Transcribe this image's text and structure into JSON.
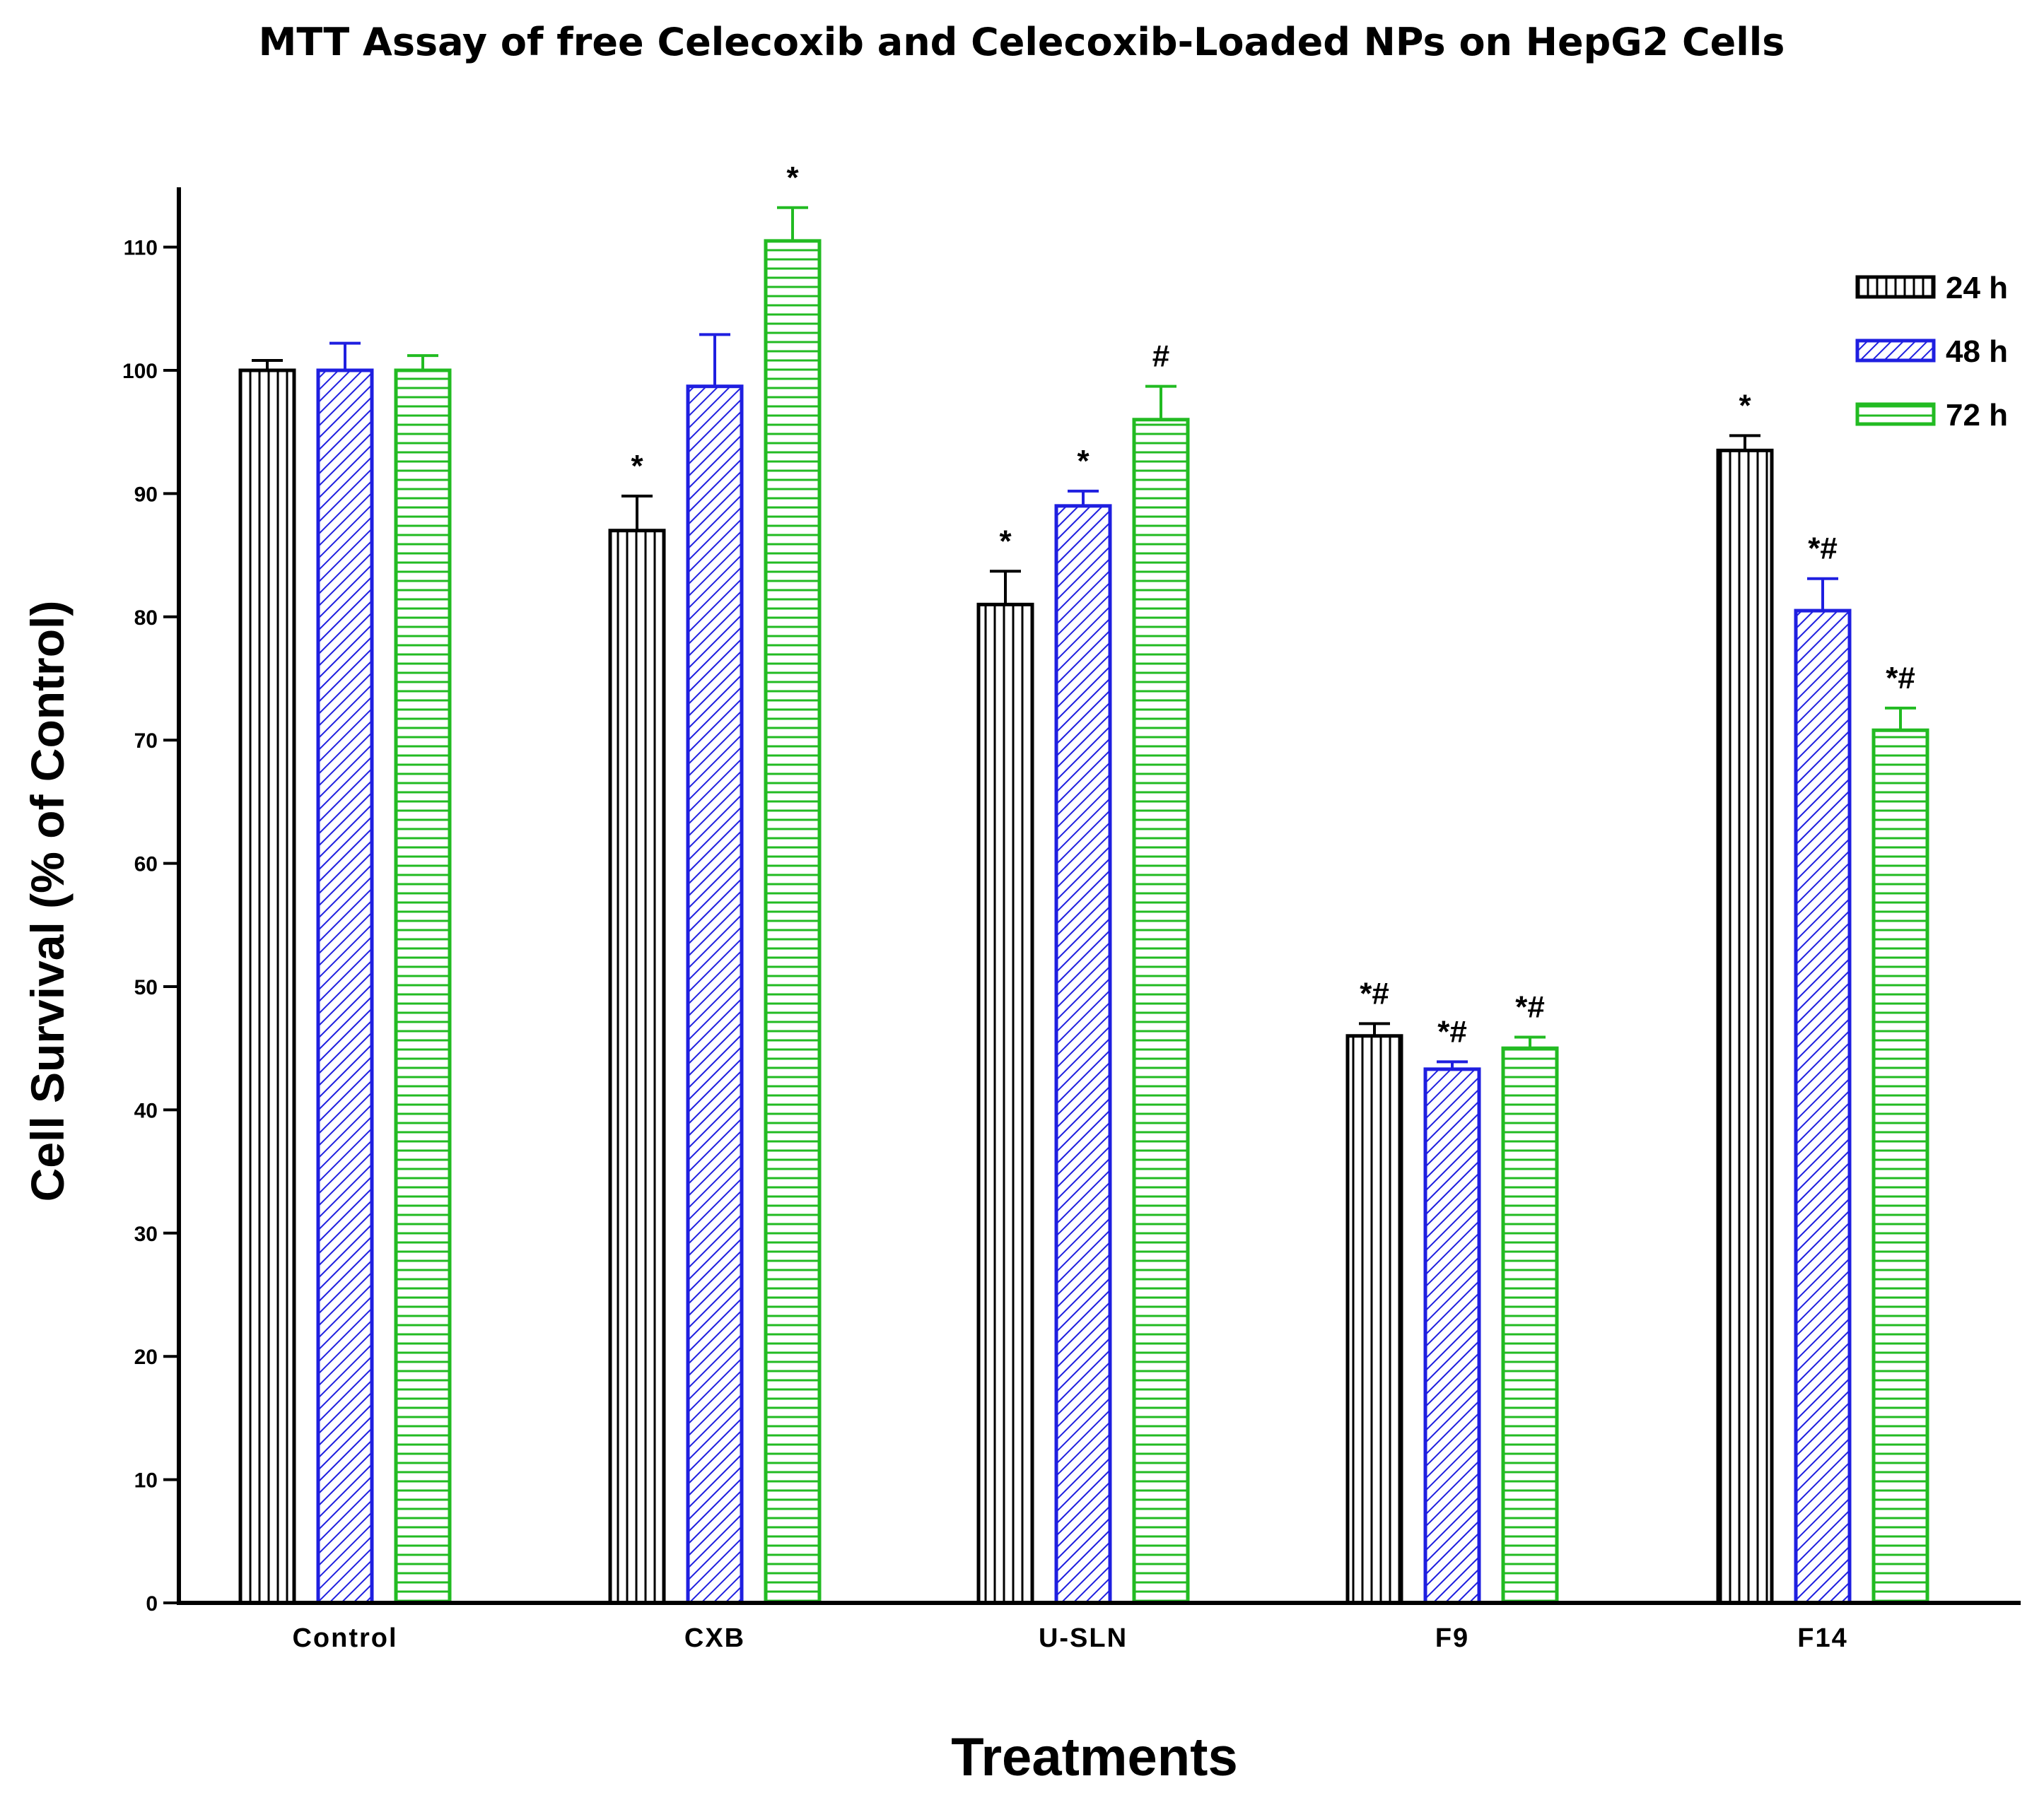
{
  "chart_data": {
    "type": "bar",
    "title": "MTT Assay of free Celecoxib and Celecoxib-Loaded NPs on HepG2 Cells",
    "xlabel": "Treatments",
    "ylabel": "Cell Survival (% of Control)",
    "ylim": [
      0,
      115
    ],
    "yticks": [
      0,
      10,
      20,
      30,
      40,
      50,
      60,
      70,
      80,
      90,
      100,
      110
    ],
    "categories": [
      "Control",
      "CXB",
      "U-SLN",
      "F9",
      "F14"
    ],
    "legend_position": "top-right",
    "series": [
      {
        "name": "24 h",
        "color": "#000000",
        "pattern": "vertical-lines",
        "values": [
          100,
          87,
          81,
          46,
          93.5
        ],
        "errors": [
          0.8,
          2.8,
          2.7,
          1.0,
          1.2
        ],
        "annotations": [
          "",
          "*",
          "*",
          "*#",
          "*"
        ]
      },
      {
        "name": "48 h",
        "color": "#1f1fe0",
        "pattern": "diagonal-lines",
        "values": [
          100,
          98.7,
          89,
          43.3,
          80.5
        ],
        "errors": [
          2.2,
          4.2,
          1.2,
          0.6,
          2.6
        ],
        "annotations": [
          "",
          "",
          "*",
          "*#",
          "*#"
        ]
      },
      {
        "name": "72 h",
        "color": "#22bb22",
        "pattern": "horizontal-lines",
        "values": [
          100,
          110.5,
          96,
          45,
          70.8
        ],
        "errors": [
          1.2,
          2.7,
          2.7,
          0.9,
          1.8
        ],
        "annotations": [
          "",
          "*",
          "#",
          "*#",
          "*#"
        ]
      }
    ]
  }
}
